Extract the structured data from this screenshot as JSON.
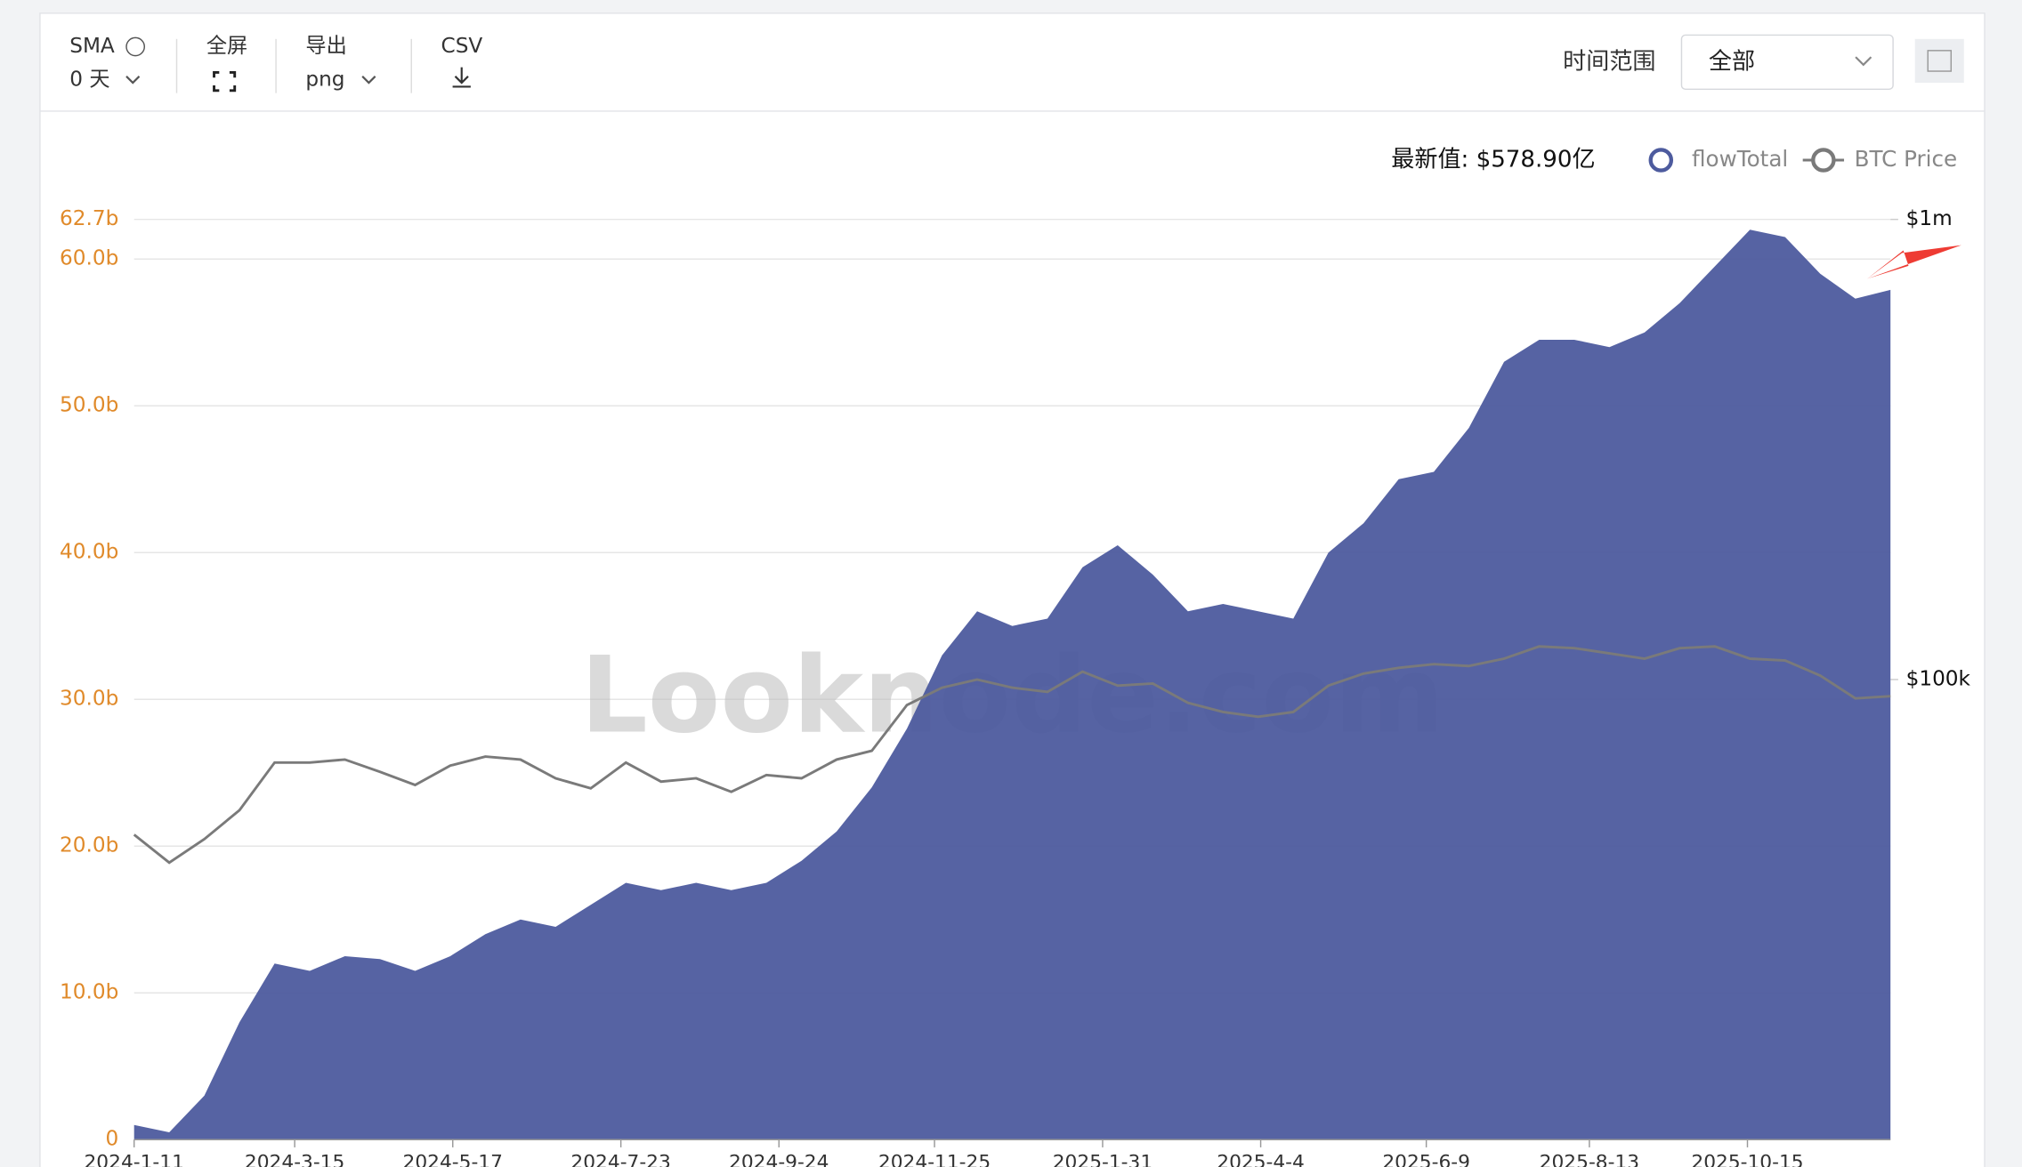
{
  "toolbar": {
    "sma_label": "SMA",
    "sma_value": "0 天",
    "fullscreen": "全屏",
    "export": "导出",
    "export_format": "png",
    "csv": "CSV",
    "range_label": "时间范围",
    "range_value": "全部"
  },
  "chart_data": {
    "type": "area",
    "latest_label": "最新值: $578.90亿",
    "watermark": "Looknode.com",
    "x": [
      "2024-1-11",
      "2024-1-25",
      "2024-2-8",
      "2024-2-22",
      "2024-3-7",
      "2024-3-21",
      "2024-4-4",
      "2024-4-18",
      "2024-5-2",
      "2024-5-16",
      "2024-5-30",
      "2024-6-13",
      "2024-6-27",
      "2024-7-11",
      "2024-7-25",
      "2024-8-8",
      "2024-8-22",
      "2024-9-5",
      "2024-9-19",
      "2024-10-3",
      "2024-10-17",
      "2024-10-31",
      "2024-11-14",
      "2024-11-28",
      "2024-12-12",
      "2024-12-26",
      "2025-1-9",
      "2025-1-23",
      "2025-2-6",
      "2025-2-20",
      "2025-3-6",
      "2025-3-20",
      "2025-4-3",
      "2025-4-17",
      "2025-5-1",
      "2025-5-15",
      "2025-5-29",
      "2025-6-12",
      "2025-6-26",
      "2025-7-10",
      "2025-7-24",
      "2025-8-7",
      "2025-8-21",
      "2025-9-4",
      "2025-9-18",
      "2025-10-2",
      "2025-10-16",
      "2025-10-30",
      "2025-11-13",
      "2025-11-27",
      "2025-12-11"
    ],
    "series": [
      {
        "name": "flowTotal",
        "type": "area",
        "color": "#4d5b9e",
        "values": [
          1,
          0.5,
          3,
          8,
          12,
          11.5,
          12.5,
          12.3,
          11.5,
          12.5,
          14,
          15,
          14.5,
          16,
          17.5,
          17,
          17.5,
          17,
          17.5,
          19,
          21,
          24,
          28,
          33,
          36,
          35,
          35.5,
          39,
          40.5,
          38.5,
          36,
          36.5,
          36,
          35.5,
          40,
          42,
          45,
          45.5,
          48.5,
          53,
          54.5,
          54.5,
          54,
          55,
          57,
          59.5,
          62,
          61.5,
          59,
          57.3,
          57.9
        ]
      },
      {
        "name": "BTC Price",
        "type": "line",
        "axis": "y2",
        "color": "#7a7a7a",
        "values": [
          46000,
          40000,
          45000,
          52000,
          66000,
          66000,
          67000,
          63000,
          59000,
          65000,
          68000,
          67000,
          61000,
          58000,
          66000,
          60000,
          61000,
          57000,
          62000,
          61000,
          67000,
          70000,
          88000,
          96000,
          100000,
          96000,
          94000,
          104000,
          97000,
          98000,
          89000,
          85000,
          83000,
          85000,
          97000,
          103000,
          106000,
          108000,
          107000,
          111000,
          118000,
          117000,
          114000,
          111000,
          117000,
          118000,
          111000,
          110000,
          102000,
          91000,
          92000
        ]
      }
    ],
    "xlim": [
      "2024-1-11",
      "2025-12-11"
    ],
    "xticks": [
      "2024-1-11",
      "2024-3-15",
      "2024-5-17",
      "2024-7-23",
      "2024-9-24",
      "2024-11-25",
      "2025-1-31",
      "2025-4-4",
      "2025-6-9",
      "2025-8-13",
      "2025-10-15"
    ],
    "ylim": [
      0,
      62.7
    ],
    "yticks": [
      {
        "value": 0,
        "label": "0"
      },
      {
        "value": 10,
        "label": "10.0b"
      },
      {
        "value": 20,
        "label": "20.0b"
      },
      {
        "value": 30,
        "label": "30.0b"
      },
      {
        "value": 40,
        "label": "40.0b"
      },
      {
        "value": 50,
        "label": "50.0b"
      },
      {
        "value": 60,
        "label": "60.0b"
      },
      {
        "value": 62.7,
        "label": "62.7b"
      }
    ],
    "y2lim": [
      10000,
      1000000
    ],
    "y2log": true,
    "y2ticks": [
      {
        "value": 100000,
        "label": "$100k"
      },
      {
        "value": 1000000,
        "label": "$1m"
      }
    ],
    "grid": true,
    "ytick_color": "#e08a2a"
  }
}
